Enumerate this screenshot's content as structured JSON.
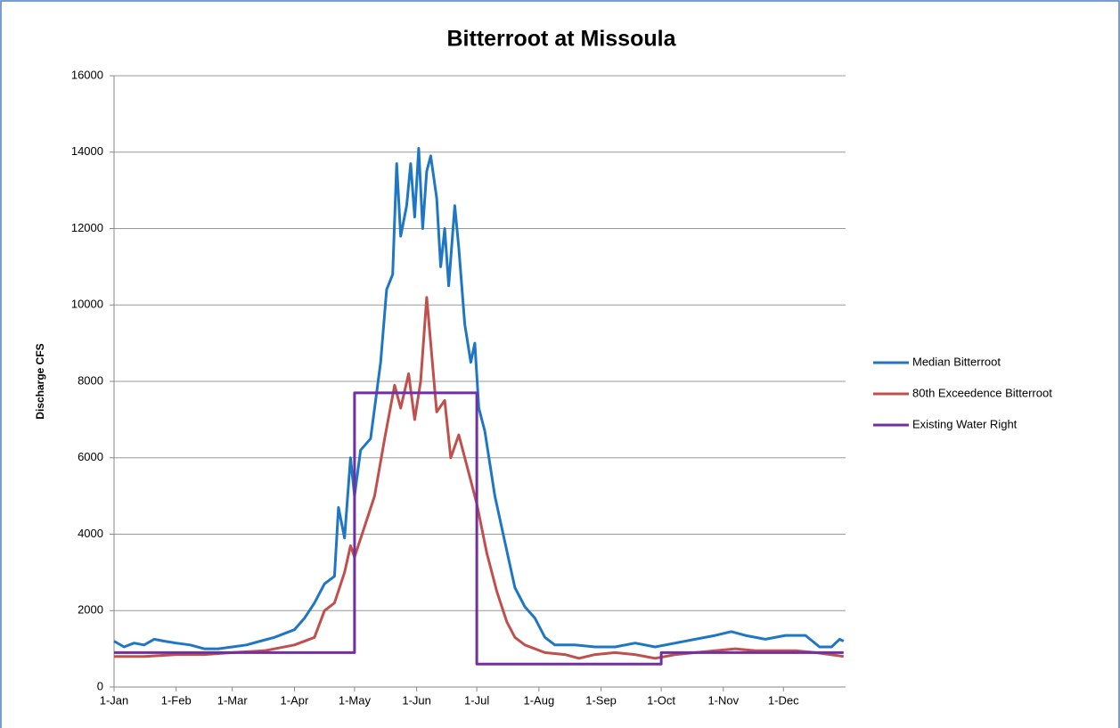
{
  "chart_data": {
    "type": "line",
    "title": "Bitterroot at Missoula",
    "y_label": "Discharge CFS",
    "xlim": [
      0,
      365
    ],
    "xticks": [
      {
        "value": 0,
        "label": "1-Jan"
      },
      {
        "value": 31,
        "label": "1-Feb"
      },
      {
        "value": 59,
        "label": "1-Mar"
      },
      {
        "value": 90,
        "label": "1-Apr"
      },
      {
        "value": 120,
        "label": "1-May"
      },
      {
        "value": 151,
        "label": "1-Jun"
      },
      {
        "value": 181,
        "label": "1-Jul"
      },
      {
        "value": 212,
        "label": "1-Aug"
      },
      {
        "value": 243,
        "label": "1-Sep"
      },
      {
        "value": 273,
        "label": "1-Oct"
      },
      {
        "value": 304,
        "label": "1-Nov"
      },
      {
        "value": 334,
        "label": "1-Dec"
      }
    ],
    "ylim": [
      0,
      16000
    ],
    "yticks": [
      0,
      2000,
      4000,
      6000,
      8000,
      10000,
      12000,
      14000,
      16000
    ],
    "grid": true,
    "legend": "right",
    "series": [
      {
        "name": "Median Bitterroot",
        "color": "#1f77c4",
        "x": [
          0,
          5,
          10,
          15,
          20,
          25,
          31,
          38,
          45,
          52,
          59,
          66,
          73,
          80,
          90,
          95,
          100,
          105,
          110,
          112,
          115,
          118,
          120,
          123,
          128,
          133,
          136,
          139,
          141,
          143,
          146,
          148,
          150,
          152,
          154,
          156,
          158,
          161,
          163,
          165,
          167,
          170,
          172,
          175,
          178,
          180,
          182,
          185,
          190,
          195,
          200,
          205,
          210,
          215,
          220,
          230,
          240,
          250,
          260,
          270,
          280,
          290,
          300,
          308,
          315,
          325,
          335,
          345,
          352,
          358,
          362,
          364
        ],
        "values": [
          1200,
          1050,
          1150,
          1100,
          1250,
          1200,
          1150,
          1100,
          1000,
          1000,
          1050,
          1100,
          1200,
          1300,
          1500,
          1800,
          2200,
          2700,
          2900,
          4700,
          3900,
          6000,
          5000,
          6200,
          6500,
          8500,
          10400,
          10800,
          13700,
          11800,
          12600,
          13700,
          12300,
          14100,
          12000,
          13500,
          13900,
          12800,
          11000,
          12000,
          10500,
          12600,
          11500,
          9500,
          8500,
          9000,
          7300,
          6700,
          5000,
          3800,
          2600,
          2100,
          1800,
          1300,
          1100,
          1100,
          1050,
          1050,
          1150,
          1050,
          1150,
          1250,
          1350,
          1450,
          1350,
          1250,
          1350,
          1350,
          1050,
          1050,
          1250,
          1200
        ]
      },
      {
        "name": "80th Exceedence Bitterroot",
        "color": "#c0504d",
        "x": [
          0,
          15,
          31,
          45,
          59,
          75,
          90,
          100,
          105,
          110,
          115,
          118,
          120,
          125,
          130,
          135,
          140,
          143,
          147,
          150,
          153,
          156,
          158,
          161,
          165,
          168,
          172,
          176,
          181,
          186,
          191,
          196,
          200,
          205,
          215,
          225,
          232,
          240,
          250,
          260,
          270,
          280,
          290,
          300,
          310,
          320,
          330,
          340,
          350,
          364
        ],
        "values": [
          800,
          800,
          850,
          850,
          900,
          950,
          1100,
          1300,
          2000,
          2200,
          3000,
          3700,
          3400,
          4200,
          5000,
          6500,
          7900,
          7300,
          8200,
          7000,
          8000,
          10200,
          9000,
          7200,
          7500,
          6000,
          6600,
          5800,
          4800,
          3500,
          2500,
          1700,
          1300,
          1100,
          900,
          850,
          750,
          850,
          900,
          850,
          750,
          850,
          900,
          950,
          1000,
          950,
          950,
          950,
          900,
          800
        ]
      },
      {
        "name": "Existing Water Right",
        "color": "#7030a0",
        "x": [
          0,
          120,
          120,
          181,
          181,
          273,
          273,
          364
        ],
        "values": [
          900,
          900,
          7700,
          7700,
          600,
          600,
          900,
          900
        ]
      }
    ]
  }
}
